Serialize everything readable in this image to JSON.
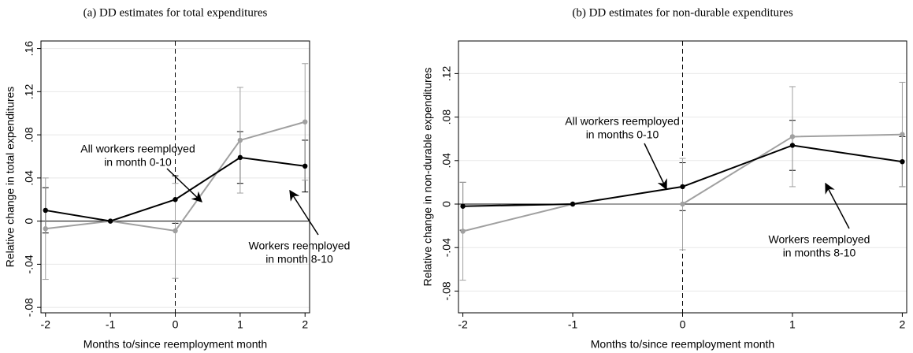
{
  "chart_data": [
    {
      "type": "line",
      "title": "(a) DD estimates for total expenditures",
      "xlabel": "Months to/since reemployment month",
      "ylabel": "Relative change in total expenditures",
      "x": [
        -2,
        -1,
        0,
        1,
        2
      ],
      "xlim": [
        -2.07,
        2.07
      ],
      "xticks": [
        -2,
        -1,
        0,
        1,
        2
      ],
      "ylim": [
        -0.085,
        0.167
      ],
      "yticks": [
        {
          "value": -0.08,
          "label": "-.08"
        },
        {
          "value": -0.04,
          "label": "-.04"
        },
        0,
        {
          "value": 0.04,
          "label": ".04"
        },
        {
          "value": 0.08,
          "label": ".08"
        },
        {
          "value": 0.12,
          "label": ".12"
        },
        {
          "value": 0.16,
          "label": ".16"
        }
      ],
      "grid": true,
      "series": [
        {
          "label": [
            "All workers reemployed",
            "in month 0-10"
          ],
          "color": "#000000",
          "values": [
            0.01,
            0,
            0.02,
            0.059,
            0.051
          ],
          "errors": [
            0.021,
            null,
            0.022,
            0.024,
            0.024
          ]
        },
        {
          "label": [
            "Workers reemployed",
            "in month 8-10"
          ],
          "color": "#a0a0a0",
          "values": [
            -0.007,
            0,
            -0.009,
            0.075,
            0.092
          ],
          "errors": [
            0.047,
            null,
            0.044,
            0.049,
            0.054
          ]
        }
      ]
    },
    {
      "type": "line",
      "title": "(b) DD estimates for non-durable expenditures",
      "xlabel": "Months to/since reemployment month",
      "ylabel": "Relative change in non-durable expenditures",
      "x": [
        -2,
        -1,
        0,
        1,
        2
      ],
      "xlim": [
        -2.04,
        2.04
      ],
      "xticks": [
        -2,
        -1,
        0,
        1,
        2
      ],
      "ylim": [
        -0.1,
        0.15
      ],
      "yticks": [
        {
          "value": -0.08,
          "label": "-.08"
        },
        {
          "value": -0.04,
          "label": "-.04"
        },
        0,
        {
          "value": 0.04,
          "label": ".04"
        },
        {
          "value": 0.08,
          "label": ".08"
        },
        {
          "value": 0.12,
          "label": ".12"
        }
      ],
      "grid": true,
      "series": [
        {
          "label": [
            "All workers reemployed",
            "in months 0-10"
          ],
          "color": "#000000",
          "values": [
            -0.002,
            0,
            0.016,
            0.054,
            0.039
          ],
          "errors": [
            0.022,
            null,
            0.022,
            0.023,
            0.023
          ]
        },
        {
          "label": [
            "Workers reemployed",
            "in months 8-10"
          ],
          "color": "#a0a0a0",
          "values": [
            -0.025,
            0,
            0,
            0.062,
            0.064
          ],
          "errors": [
            0.045,
            null,
            0.042,
            0.046,
            0.048
          ]
        }
      ]
    }
  ]
}
